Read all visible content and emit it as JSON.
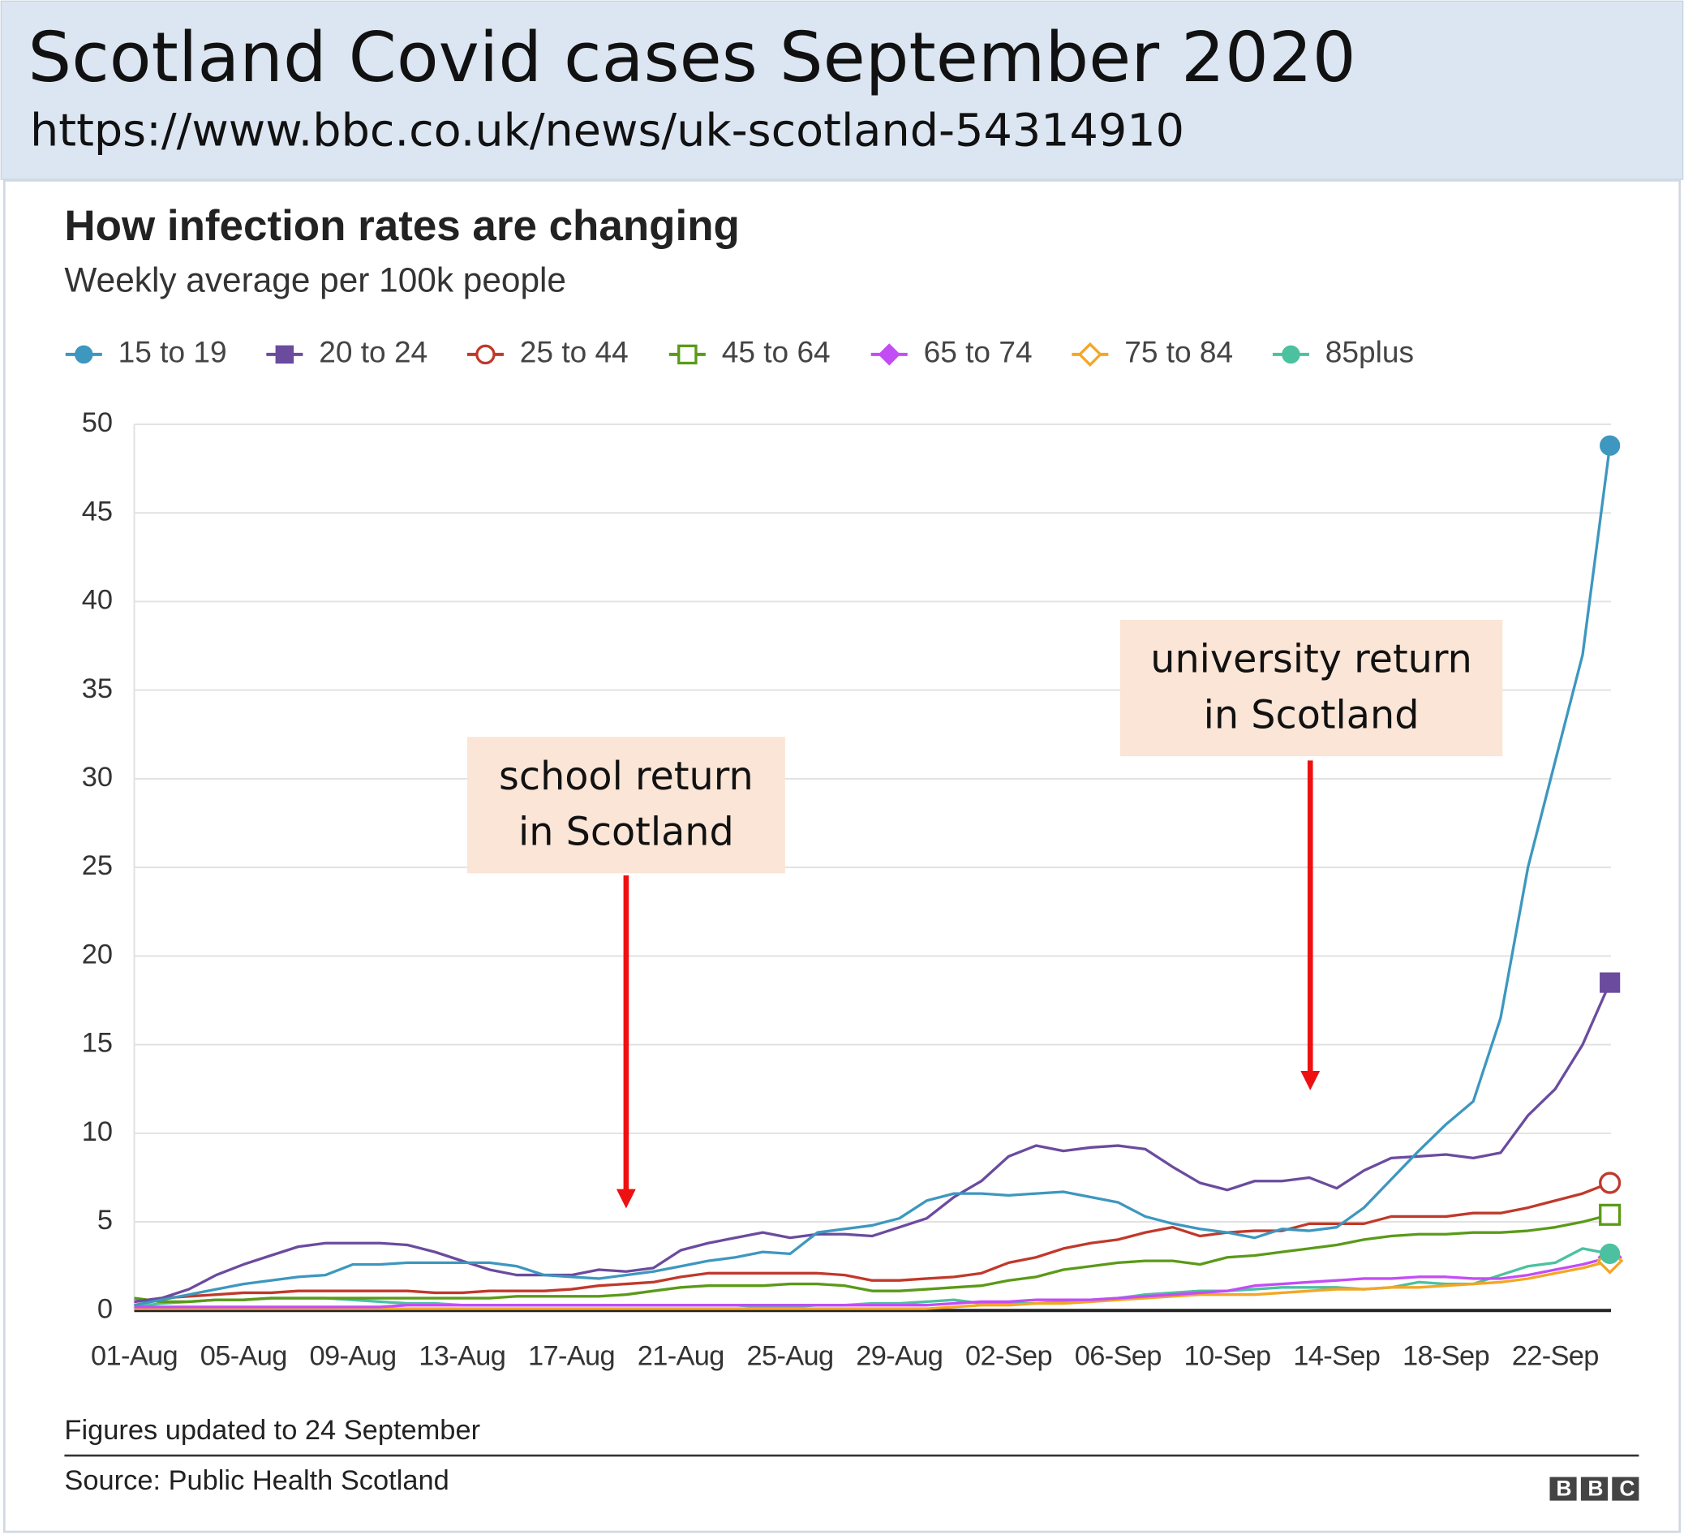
{
  "header": {
    "title": "Scotland Covid cases September 2020",
    "url": "https://www.bbc.co.uk/news/uk-scotland-54314910"
  },
  "chart_data": {
    "type": "line",
    "title": "How infection rates are changing",
    "subtitle": "Weekly average per 100k people",
    "categories": [
      "01-Aug",
      null,
      null,
      null,
      "05-Aug",
      null,
      null,
      null,
      "09-Aug",
      null,
      null,
      null,
      "13-Aug",
      null,
      null,
      null,
      "17-Aug",
      null,
      null,
      null,
      "21-Aug",
      null,
      null,
      null,
      "25-Aug",
      null,
      null,
      null,
      "29-Aug",
      null,
      null,
      null,
      "02-Sep",
      null,
      null,
      null,
      "06-Sep",
      null,
      null,
      null,
      "10-Sep",
      null,
      null,
      null,
      "14-Sep",
      null,
      null,
      null,
      "18-Sep",
      null,
      null,
      null,
      "22-Sep",
      null,
      null
    ],
    "series": [
      {
        "name": "15 to 19",
        "color": "#3d97bf",
        "marker": "circle",
        "filled": true,
        "values": [
          0.3,
          0.6,
          0.9,
          1.2,
          1.5,
          1.7,
          1.9,
          2.0,
          2.6,
          2.6,
          2.7,
          2.7,
          2.7,
          2.7,
          2.5,
          2.0,
          1.9,
          1.8,
          2.0,
          2.2,
          2.5,
          2.8,
          3.0,
          3.3,
          3.2,
          4.4,
          4.6,
          4.8,
          5.2,
          6.2,
          6.6,
          6.6,
          6.5,
          6.6,
          6.7,
          6.4,
          6.1,
          5.3,
          4.9,
          4.6,
          4.4,
          4.1,
          4.6,
          4.5,
          4.7,
          5.8,
          7.4,
          9.0,
          10.5,
          11.8,
          16.5,
          25.0,
          31.0,
          37.0,
          48.8
        ]
      },
      {
        "name": "20 to 24",
        "color": "#6b4b9e",
        "marker": "square",
        "filled": true,
        "values": [
          0.5,
          0.7,
          1.2,
          2.0,
          2.6,
          3.1,
          3.6,
          3.8,
          3.8,
          3.8,
          3.7,
          3.3,
          2.8,
          2.3,
          2.0,
          2.0,
          2.0,
          2.3,
          2.2,
          2.4,
          3.4,
          3.8,
          4.1,
          4.4,
          4.1,
          4.3,
          4.3,
          4.2,
          4.7,
          5.2,
          6.4,
          7.3,
          8.7,
          9.3,
          9.0,
          9.2,
          9.3,
          9.1,
          8.1,
          7.2,
          6.8,
          7.3,
          7.3,
          7.5,
          6.9,
          7.9,
          8.6,
          8.7,
          8.8,
          8.6,
          8.9,
          11.0,
          12.5,
          15.0,
          18.5
        ]
      },
      {
        "name": "25 to 44",
        "color": "#c0392b",
        "marker": "circle",
        "filled": false,
        "values": [
          0.5,
          0.7,
          0.8,
          0.9,
          1.0,
          1.0,
          1.1,
          1.1,
          1.1,
          1.1,
          1.1,
          1.0,
          1.0,
          1.1,
          1.1,
          1.1,
          1.2,
          1.4,
          1.5,
          1.6,
          1.9,
          2.1,
          2.1,
          2.1,
          2.1,
          2.1,
          2.0,
          1.7,
          1.7,
          1.8,
          1.9,
          2.1,
          2.7,
          3.0,
          3.5,
          3.8,
          4.0,
          4.4,
          4.7,
          4.2,
          4.4,
          4.5,
          4.5,
          4.9,
          4.9,
          4.9,
          5.3,
          5.3,
          5.3,
          5.5,
          5.5,
          5.8,
          6.2,
          6.6,
          7.2
        ]
      },
      {
        "name": "45 to 64",
        "color": "#5a9a18",
        "marker": "square",
        "filled": false,
        "values": [
          0.7,
          0.5,
          0.5,
          0.6,
          0.6,
          0.7,
          0.7,
          0.7,
          0.7,
          0.7,
          0.7,
          0.7,
          0.7,
          0.7,
          0.8,
          0.8,
          0.8,
          0.8,
          0.9,
          1.1,
          1.3,
          1.4,
          1.4,
          1.4,
          1.5,
          1.5,
          1.4,
          1.1,
          1.1,
          1.2,
          1.3,
          1.4,
          1.7,
          1.9,
          2.3,
          2.5,
          2.7,
          2.8,
          2.8,
          2.6,
          3.0,
          3.1,
          3.3,
          3.5,
          3.7,
          4.0,
          4.2,
          4.3,
          4.3,
          4.4,
          4.4,
          4.5,
          4.7,
          5.0,
          5.4
        ]
      },
      {
        "name": "65 to 74",
        "color": "#c34df5",
        "marker": "diamond",
        "filled": true,
        "values": [
          0.2,
          0.2,
          0.2,
          0.2,
          0.2,
          0.2,
          0.2,
          0.2,
          0.2,
          0.2,
          0.3,
          0.3,
          0.3,
          0.3,
          0.3,
          0.3,
          0.3,
          0.3,
          0.3,
          0.3,
          0.3,
          0.3,
          0.3,
          0.3,
          0.3,
          0.3,
          0.3,
          0.3,
          0.3,
          0.3,
          0.4,
          0.5,
          0.5,
          0.6,
          0.6,
          0.6,
          0.7,
          0.8,
          0.9,
          1.0,
          1.1,
          1.4,
          1.5,
          1.6,
          1.7,
          1.8,
          1.8,
          1.9,
          1.9,
          1.8,
          1.8,
          2.0,
          2.3,
          2.6,
          3.0
        ]
      },
      {
        "name": "75 to 84",
        "color": "#f5a623",
        "marker": "diamond",
        "filled": false,
        "values": [
          0.1,
          0.1,
          0.1,
          0.1,
          0.1,
          0.1,
          0.1,
          0.1,
          0.1,
          0.1,
          0.1,
          0.1,
          0.1,
          0.1,
          0.1,
          0.1,
          0.1,
          0.1,
          0.1,
          0.1,
          0.1,
          0.1,
          0.1,
          0.1,
          0.1,
          0.1,
          0.1,
          0.1,
          0.1,
          0.1,
          0.2,
          0.3,
          0.3,
          0.4,
          0.4,
          0.5,
          0.6,
          0.7,
          0.8,
          0.9,
          0.9,
          0.9,
          1.0,
          1.1,
          1.2,
          1.2,
          1.3,
          1.3,
          1.4,
          1.5,
          1.6,
          1.8,
          2.1,
          2.4,
          2.8
        ]
      },
      {
        "name": "85plus",
        "color": "#4cc1a0",
        "marker": "circle",
        "filled": true,
        "values": [
          0.2,
          0.4,
          0.5,
          0.6,
          0.6,
          0.7,
          0.7,
          0.7,
          0.6,
          0.5,
          0.4,
          0.4,
          0.3,
          0.3,
          0.3,
          0.3,
          0.3,
          0.3,
          0.3,
          0.3,
          0.3,
          0.3,
          0.3,
          0.2,
          0.2,
          0.3,
          0.3,
          0.4,
          0.4,
          0.5,
          0.6,
          0.4,
          0.4,
          0.4,
          0.5,
          0.6,
          0.7,
          0.9,
          1.0,
          1.1,
          1.1,
          1.2,
          1.3,
          1.3,
          1.3,
          1.2,
          1.3,
          1.6,
          1.5,
          1.5,
          2.0,
          2.5,
          2.7,
          3.5,
          3.2
        ]
      }
    ],
    "ylim": [
      0,
      50
    ],
    "yticks": [
      0,
      5,
      10,
      15,
      20,
      25,
      30,
      35,
      40,
      45,
      50
    ],
    "grid": true,
    "annotations": [
      {
        "lines": [
          "school return",
          "in Scotland"
        ]
      },
      {
        "lines": [
          "university return",
          "in Scotland"
        ]
      }
    ],
    "note": "Figures updated to 24 September",
    "source": "Source: Public Health Scotland",
    "logo": "BBC"
  }
}
